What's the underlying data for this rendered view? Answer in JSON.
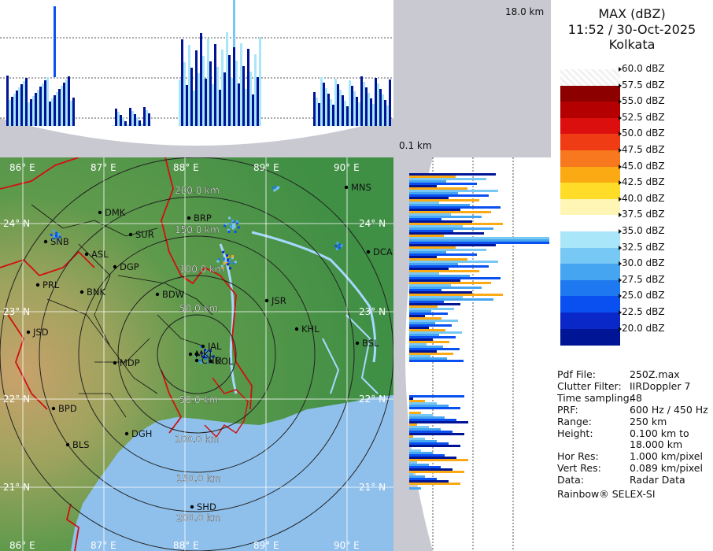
{
  "header": {
    "product": "MAX (dBZ)",
    "datetime": "11:52 / 30-Oct-2025",
    "site": "Kolkata"
  },
  "heights": {
    "top": "18.0 km",
    "bottom": "0.1 km"
  },
  "color_scale": [
    {
      "label": "60.0 dBZ",
      "color": "#ffffff"
    },
    {
      "label": "57.5 dBZ",
      "color": "#8c0000"
    },
    {
      "label": "55.0 dBZ",
      "color": "#b40000"
    },
    {
      "label": "52.5 dBZ",
      "color": "#dc0f0f"
    },
    {
      "label": "50.0 dBZ",
      "color": "#f03c14"
    },
    {
      "label": "47.5 dBZ",
      "color": "#f7781e"
    },
    {
      "label": "45.0 dBZ",
      "color": "#fbaa14"
    },
    {
      "label": "42.5 dBZ",
      "color": "#ffdc28"
    },
    {
      "label": "40.0 dBZ",
      "color": "#fff5b4"
    },
    {
      "label": "37.5 dBZ",
      "color": "#ffffff"
    },
    {
      "label": "35.0 dBZ",
      "color": "#aae6fa"
    },
    {
      "label": "32.5 dBZ",
      "color": "#78c8f5"
    },
    {
      "label": "30.0 dBZ",
      "color": "#46a5f0"
    },
    {
      "label": "27.5 dBZ",
      "color": "#1e78f0"
    },
    {
      "label": "25.0 dBZ",
      "color": "#0a50f0"
    },
    {
      "label": "22.5 dBZ",
      "color": "#0a28c8"
    },
    {
      "label": "20.0 dBZ",
      "color": "#001496"
    }
  ],
  "info": [
    {
      "key": "Pdf File:",
      "value": "250Z.max"
    },
    {
      "key": "Clutter Filter:",
      "value": "IIRDoppler 7"
    },
    {
      "key": "Time sampling:",
      "value": "48"
    },
    {
      "key": "PRF:",
      "value": "600 Hz / 450 Hz"
    },
    {
      "key": "Range:",
      "value": "250 km"
    },
    {
      "key": "Height:",
      "value": "0.100 km to"
    },
    {
      "key": "",
      "value": "18.000 km"
    },
    {
      "key": "Hor Res:",
      "value": "1.000 km/pixel"
    },
    {
      "key": "Vert Res:",
      "value": "0.089 km/pixel"
    },
    {
      "key": "Data:",
      "value": "Radar Data"
    }
  ],
  "footer": "Rainbow® SELEX-SI",
  "map": {
    "lon_labels": [
      "86° E",
      "87° E",
      "88° E",
      "89° E",
      "90° E"
    ],
    "lat_labels": [
      "24° N",
      "23° N",
      "22° N",
      "21° N"
    ],
    "range_labels": [
      "50.0 km",
      "100.0 km",
      "150.0 km",
      "200.0 km"
    ],
    "cities": [
      "MNS",
      "DMK",
      "BRP",
      "SNB",
      "SUR",
      "ASL",
      "DGP",
      "DCA",
      "PRL",
      "BNK",
      "BDW",
      "JSR",
      "KHL",
      "JSD",
      "BSL",
      "MDP",
      "BPD",
      "DGH",
      "BLS",
      "SHD",
      "KOL",
      "MKL",
      "JAL",
      "CND"
    ]
  },
  "colors": {
    "land_low": "#3f8f45",
    "land_high": "#c7a06a",
    "sea": "#8fc0ec",
    "river": "#a8d8ff",
    "district_line": "#111111",
    "state_line": "#d01010",
    "panel_gray": "#c9c9d2"
  }
}
